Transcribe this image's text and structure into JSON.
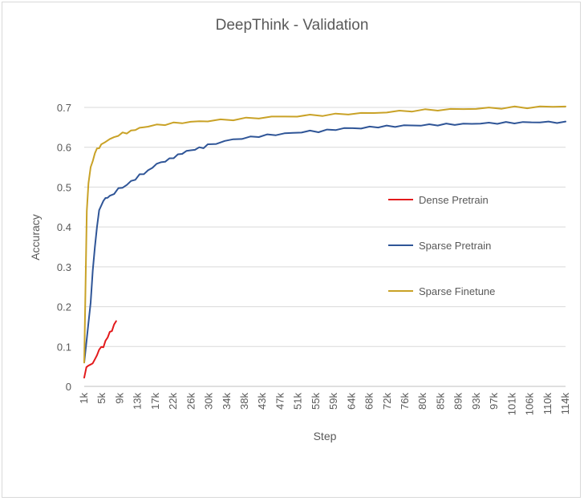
{
  "chart_data": {
    "type": "line",
    "title": "DeepThink - Validation",
    "xlabel": "Step",
    "ylabel": "Accuracy",
    "ylim": [
      0,
      0.7
    ],
    "y_ticks": [
      "0",
      "0.1",
      "0.2",
      "0.3",
      "0.4",
      "0.5",
      "0.6",
      "0.7"
    ],
    "x_range_k": [
      1,
      114
    ],
    "x_ticks": [
      "1k",
      "5k",
      "9k",
      "13k",
      "17k",
      "22k",
      "26k",
      "30k",
      "34k",
      "38k",
      "43k",
      "47k",
      "51k",
      "55k",
      "59k",
      "64k",
      "68k",
      "72k",
      "76k",
      "80k",
      "85k",
      "89k",
      "93k",
      "97k",
      "101k",
      "106k",
      "110k",
      "114k"
    ],
    "grid": "horizontal",
    "legend_position": "right-center",
    "series": [
      {
        "name": "Dense Pretrain",
        "color": "#e31a1c",
        "x_k": [
          1.0,
          1.5,
          2.0,
          2.5,
          3.0,
          3.5,
          4.0,
          4.5,
          5.0,
          5.5,
          6.0,
          6.5,
          7.0,
          7.5,
          8.0,
          8.5
        ],
        "y": [
          0.022,
          0.048,
          0.052,
          0.055,
          0.058,
          0.068,
          0.078,
          0.092,
          0.098,
          0.1,
          0.112,
          0.125,
          0.135,
          0.14,
          0.155,
          0.163
        ]
      },
      {
        "name": "Sparse Pretrain",
        "color": "#2f5597",
        "x_k": [
          1,
          1.5,
          2,
          2.5,
          3,
          3.5,
          4,
          4.5,
          5,
          5.5,
          6,
          6.5,
          7,
          8,
          9,
          10,
          11,
          12,
          13,
          14,
          15,
          16,
          17,
          18,
          19,
          20,
          21,
          22,
          23,
          24,
          25,
          26,
          27,
          28,
          29,
          30,
          32,
          34,
          36,
          38,
          40,
          42,
          44,
          46,
          48,
          50,
          52,
          54,
          56,
          58,
          60,
          62,
          64,
          66,
          68,
          70,
          72,
          74,
          76,
          78,
          80,
          82,
          84,
          86,
          88,
          90,
          92,
          94,
          96,
          98,
          100,
          102,
          104,
          106,
          108,
          110,
          112,
          114
        ],
        "y": [
          0.06,
          0.11,
          0.16,
          0.21,
          0.29,
          0.35,
          0.4,
          0.44,
          0.455,
          0.465,
          0.472,
          0.475,
          0.476,
          0.485,
          0.495,
          0.5,
          0.505,
          0.515,
          0.52,
          0.53,
          0.535,
          0.54,
          0.55,
          0.558,
          0.562,
          0.565,
          0.57,
          0.575,
          0.58,
          0.585,
          0.59,
          0.592,
          0.595,
          0.598,
          0.6,
          0.605,
          0.61,
          0.615,
          0.62,
          0.622,
          0.625,
          0.628,
          0.63,
          0.632,
          0.634,
          0.636,
          0.638,
          0.64,
          0.64,
          0.642,
          0.645,
          0.647,
          0.648,
          0.648,
          0.65,
          0.652,
          0.652,
          0.653,
          0.654,
          0.655,
          0.655,
          0.656,
          0.657,
          0.657,
          0.658,
          0.658,
          0.659,
          0.66,
          0.66,
          0.661,
          0.661,
          0.662,
          0.662,
          0.663,
          0.663,
          0.663,
          0.663,
          0.662
        ]
      },
      {
        "name": "Sparse Finetune",
        "color": "#c9a227",
        "x_k": [
          1,
          1.3,
          1.6,
          2,
          2.5,
          3,
          3.5,
          4,
          4.5,
          5,
          6,
          7,
          8,
          9,
          10,
          11,
          12,
          13,
          14,
          15,
          16,
          18,
          20,
          22,
          24,
          26,
          28,
          30,
          33,
          36,
          39,
          42,
          45,
          48,
          51,
          54,
          57,
          60,
          63,
          66,
          69,
          72,
          75,
          78,
          81,
          84,
          87,
          90,
          93,
          96,
          99,
          102,
          105,
          108,
          111,
          114
        ],
        "y": [
          0.06,
          0.25,
          0.44,
          0.51,
          0.55,
          0.565,
          0.585,
          0.595,
          0.6,
          0.605,
          0.615,
          0.62,
          0.625,
          0.63,
          0.635,
          0.637,
          0.64,
          0.645,
          0.648,
          0.65,
          0.653,
          0.655,
          0.658,
          0.66,
          0.662,
          0.663,
          0.665,
          0.666,
          0.668,
          0.67,
          0.672,
          0.674,
          0.676,
          0.677,
          0.678,
          0.68,
          0.681,
          0.682,
          0.684,
          0.685,
          0.686,
          0.688,
          0.69,
          0.692,
          0.693,
          0.694,
          0.695,
          0.696,
          0.697,
          0.698,
          0.699,
          0.7,
          0.7,
          0.701,
          0.702,
          0.703
        ]
      }
    ]
  }
}
